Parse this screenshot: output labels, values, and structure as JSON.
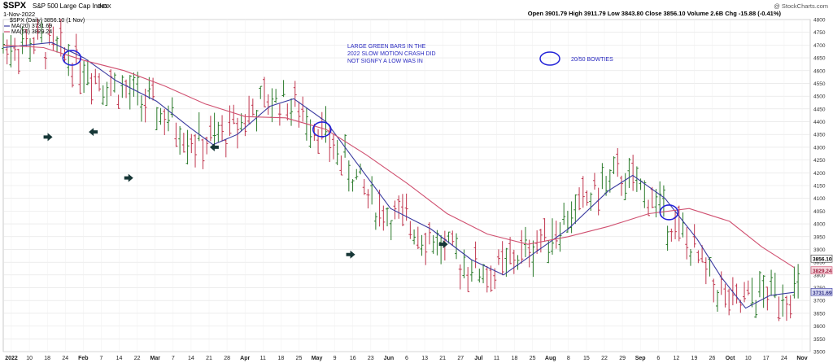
{
  "header": {
    "symbol": "$SPX",
    "name": "S&P 500 Large Cap Index",
    "exchange": "INDX",
    "date": "1-Nov-2022",
    "watermark": "@ StockCharts.com",
    "ohlc_line": "Open 3901.79  High 3911.79  Low 3843.80  Close 3856.10  Volume 2.6B  Chg -15.88 (-0.41%)"
  },
  "legend": {
    "price": "$SPX (Daily) 3856.10 (1 Nov)",
    "ma20": "MA(20) 3731.69",
    "ma50": "MA(50) 3829.24"
  },
  "annotations": {
    "note_lines": [
      "LARGE GREEN BARS IN THE",
      "2022 SLOW MOTION CRASH DID",
      "NOT SIGNFY A LOW WAS IN"
    ],
    "bowtie_label": "20/50 BOWTIES"
  },
  "chart_data": {
    "type": "line",
    "ylim": [
      3500,
      4800
    ],
    "y_ticks": [
      3500,
      3550,
      3600,
      3650,
      3700,
      3750,
      3800,
      3850,
      3900,
      3950,
      4000,
      4050,
      4100,
      4150,
      4200,
      4250,
      4300,
      4350,
      4400,
      4450,
      4500,
      4550,
      4600,
      4650,
      4700,
      4750,
      4800
    ],
    "x_labels": [
      "2022",
      "10",
      "18",
      "24",
      "Feb",
      "7",
      "14",
      "22",
      "Mar",
      "7",
      "14",
      "21",
      "28",
      "Apr",
      "11",
      "18",
      "25",
      "May",
      "9",
      "16",
      "23",
      "Jun",
      "6",
      "13",
      "21",
      "27",
      "Jul",
      "11",
      "18",
      "25",
      "Aug",
      "8",
      "15",
      "22",
      "29",
      "Sep",
      "6",
      "12",
      "19",
      "26",
      "Oct",
      "10",
      "17",
      "24",
      "Nov"
    ],
    "last_price": "3856.10",
    "ma50_last": "3829.24",
    "ma20_last": "3731.69",
    "price_range": [
      3650,
      4680
    ],
    "series": [
      {
        "name": "MA(20) 3731.69",
        "color": "#3a3aa0",
        "points": [
          [
            0,
            4690
          ],
          [
            0.06,
            4710
          ],
          [
            0.1,
            4650
          ],
          [
            0.14,
            4560
          ],
          [
            0.19,
            4480
          ],
          [
            0.23,
            4380
          ],
          [
            0.26,
            4310
          ],
          [
            0.29,
            4350
          ],
          [
            0.33,
            4460
          ],
          [
            0.36,
            4490
          ],
          [
            0.4,
            4400
          ],
          [
            0.44,
            4230
          ],
          [
            0.48,
            4060
          ],
          [
            0.53,
            3980
          ],
          [
            0.58,
            3860
          ],
          [
            0.62,
            3800
          ],
          [
            0.66,
            3890
          ],
          [
            0.7,
            3980
          ],
          [
            0.75,
            4130
          ],
          [
            0.78,
            4190
          ],
          [
            0.82,
            4100
          ],
          [
            0.86,
            3940
          ],
          [
            0.89,
            3790
          ],
          [
            0.92,
            3670
          ],
          [
            0.95,
            3720
          ],
          [
            0.98,
            3732
          ]
        ]
      },
      {
        "name": "MA(50) 3829.24",
        "color": "#d05070",
        "points": [
          [
            0,
            4700
          ],
          [
            0.05,
            4690
          ],
          [
            0.1,
            4640
          ],
          [
            0.15,
            4600
          ],
          [
            0.2,
            4540
          ],
          [
            0.25,
            4470
          ],
          [
            0.3,
            4420
          ],
          [
            0.35,
            4415
          ],
          [
            0.4,
            4370
          ],
          [
            0.45,
            4270
          ],
          [
            0.5,
            4160
          ],
          [
            0.55,
            4040
          ],
          [
            0.6,
            3960
          ],
          [
            0.65,
            3920
          ],
          [
            0.7,
            3950
          ],
          [
            0.75,
            3990
          ],
          [
            0.8,
            4040
          ],
          [
            0.85,
            4060
          ],
          [
            0.9,
            4010
          ],
          [
            0.94,
            3910
          ],
          [
            0.98,
            3829
          ]
        ]
      }
    ],
    "bowties": [
      [
        0.085,
        4650
      ],
      [
        0.395,
        4370
      ],
      [
        0.825,
        4045
      ]
    ],
    "arrows": [
      [
        0.055,
        4340
      ],
      [
        0.112,
        4360
      ],
      [
        0.155,
        4180
      ],
      [
        0.262,
        4300
      ],
      [
        0.43,
        3880
      ],
      [
        0.545,
        3920
      ]
    ]
  }
}
